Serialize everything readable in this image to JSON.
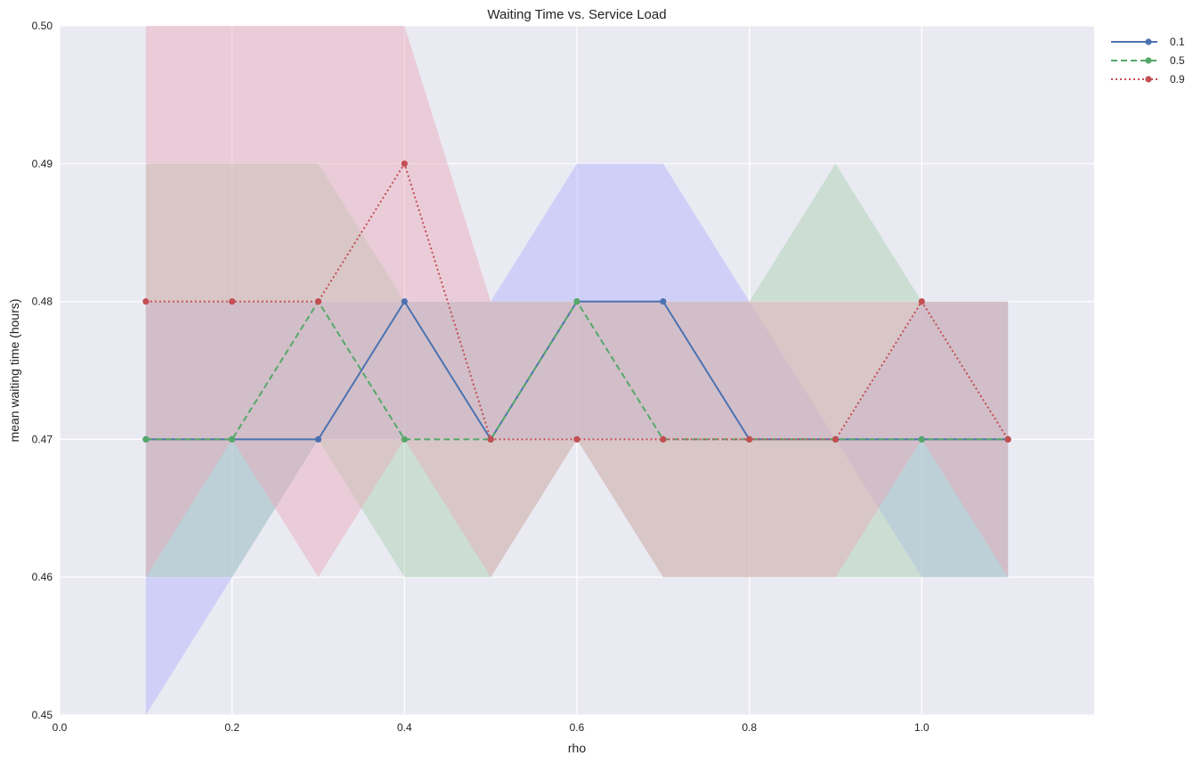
{
  "chart_data": {
    "type": "line",
    "title": "Waiting Time vs. Service Load",
    "xlabel": "rho",
    "ylabel": "mean waiting time (hours)",
    "xlim": [
      0.0,
      1.2
    ],
    "ylim": [
      0.45,
      0.5
    ],
    "xticks": [
      "0.0",
      "0.2",
      "0.4",
      "0.6",
      "0.8",
      "1.0"
    ],
    "yticks": [
      "0.45",
      "0.46",
      "0.47",
      "0.48",
      "0.49",
      "0.50"
    ],
    "grid": true,
    "legend_position": "outside-top-right",
    "x": [
      0.1,
      0.2,
      0.3,
      0.4,
      0.5,
      0.6,
      0.7,
      0.8,
      0.9,
      1.0,
      1.1
    ],
    "series": [
      {
        "name": "0.1",
        "color": "#4c72b0",
        "band_color": "#b0b0ff",
        "line_style": "solid",
        "values": [
          0.47,
          0.47,
          0.47,
          0.48,
          0.47,
          0.48,
          0.48,
          0.47,
          0.47,
          0.47,
          0.47
        ],
        "lower": [
          0.45,
          0.46,
          0.47,
          0.47,
          0.47,
          0.47,
          0.47,
          0.47,
          0.47,
          0.46,
          0.46
        ],
        "upper": [
          0.48,
          0.48,
          0.48,
          0.48,
          0.48,
          0.49,
          0.49,
          0.48,
          0.47,
          0.48,
          0.48
        ]
      },
      {
        "name": "0.5",
        "color": "#55a868",
        "band_color": "#a8d0b0",
        "line_style": "dashed",
        "values": [
          0.47,
          0.47,
          0.48,
          0.47,
          0.47,
          0.48,
          0.47,
          0.47,
          0.47,
          0.47,
          0.47
        ],
        "lower": [
          0.46,
          0.46,
          0.47,
          0.46,
          0.46,
          0.47,
          0.46,
          0.46,
          0.46,
          0.46,
          0.46
        ],
        "upper": [
          0.49,
          0.49,
          0.49,
          0.48,
          0.48,
          0.48,
          0.48,
          0.48,
          0.49,
          0.48,
          0.48
        ]
      },
      {
        "name": "0.9",
        "color": "#c44e52",
        "band_color": "#e8a8b8",
        "line_style": "dotted",
        "values": [
          0.48,
          0.48,
          0.48,
          0.49,
          0.47,
          0.47,
          0.47,
          0.47,
          0.47,
          0.48,
          0.47
        ],
        "lower": [
          0.46,
          0.47,
          0.46,
          0.47,
          0.46,
          0.47,
          0.46,
          0.46,
          0.46,
          0.47,
          0.46
        ],
        "upper": [
          0.5,
          0.5,
          0.5,
          0.5,
          0.48,
          0.48,
          0.48,
          0.48,
          0.48,
          0.48,
          0.48
        ]
      }
    ]
  },
  "colors": {
    "plot_background": "#eaeaf2",
    "grid": "#ffffff"
  }
}
